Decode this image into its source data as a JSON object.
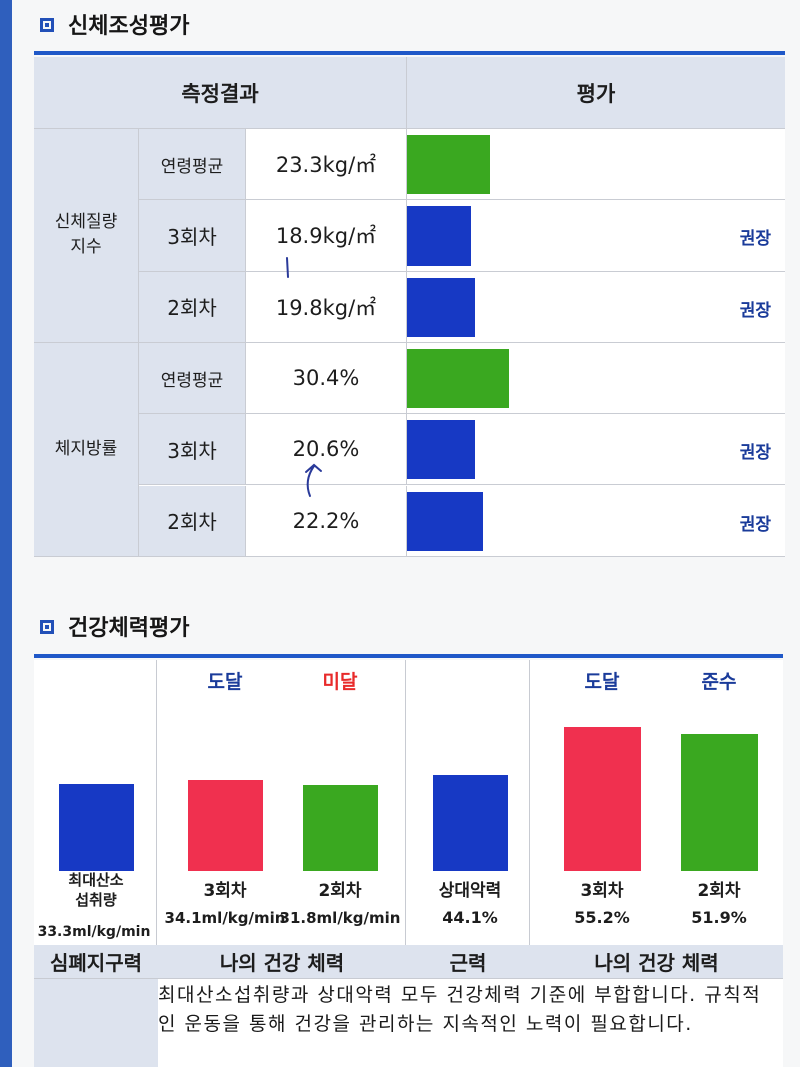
{
  "section1": {
    "title": "신체조성평가",
    "headers": {
      "result": "측정결과",
      "evaluation": "평가"
    },
    "groups": [
      {
        "category": "신체질량\n지수",
        "rows": [
          {
            "label": "연령평균",
            "value": "23.3kg/㎡",
            "level": 0.22,
            "color": "#3aa820",
            "note": ""
          },
          {
            "label": "3회차",
            "value": "18.9kg/㎡",
            "level": 0.17,
            "color": "#1739c4",
            "note": "권장"
          },
          {
            "label": "2회차",
            "value": "19.8kg/㎡",
            "level": 0.18,
            "color": "#1739c4",
            "note": "권장"
          }
        ]
      },
      {
        "category": "체지방률",
        "rows": [
          {
            "label": "연령평균",
            "value": "30.4%",
            "level": 0.27,
            "color": "#3aa820",
            "note": ""
          },
          {
            "label": "3회차",
            "value": "20.6%",
            "level": 0.18,
            "color": "#1739c4",
            "note": "권장"
          },
          {
            "label": "2회차",
            "value": "22.2%",
            "level": 0.2,
            "color": "#1739c4",
            "note": "권장"
          }
        ]
      }
    ]
  },
  "section2": {
    "title": "건강체력평가",
    "bars": [
      {
        "tag": "",
        "tag_color": "",
        "label": "최대산소\n섭취량",
        "value": "33.3ml/kg/min",
        "level": 0.48,
        "color": "#1739c4"
      },
      {
        "tag": "도달",
        "tag_color": "#1a3b9a",
        "label": "3회차",
        "value": "34.1ml/kg/min",
        "level": 0.5,
        "color": "#f0304f"
      },
      {
        "tag": "미달",
        "tag_color": "#e82a2a",
        "label": "2회차",
        "value": "31.8ml/kg/min",
        "level": 0.47,
        "color": "#3aa820"
      },
      {
        "tag": "",
        "tag_color": "",
        "label": "상대악력",
        "value": "44.1%",
        "level": 0.53,
        "color": "#1739c4"
      },
      {
        "tag": "도달",
        "tag_color": "#1a3b9a",
        "label": "3회차",
        "value": "55.2%",
        "level": 0.79,
        "color": "#f0304f"
      },
      {
        "tag": "준수",
        "tag_color": "#1a3b9a",
        "label": "2회차",
        "value": "51.9%",
        "level": 0.75,
        "color": "#3aa820"
      }
    ],
    "categories": [
      "심폐지구력",
      "나의 건강 체력",
      "근력",
      "나의 건강 체력"
    ],
    "comment": "최대산소섭취량과 상대악력 모두 건강체력 기준에 부합합니다. 규칙적인 운동을 통해 건강을 관리하는 지속적인 노력이 필요합니다."
  }
}
